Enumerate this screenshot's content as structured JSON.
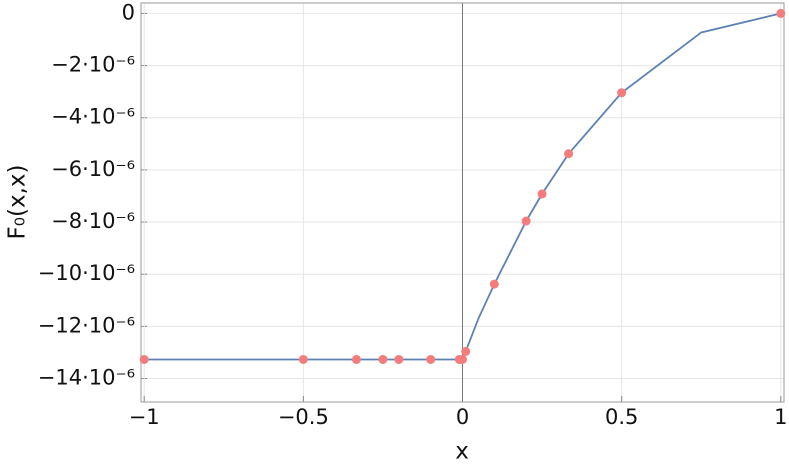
{
  "chart_data": {
    "type": "line",
    "xlabel": "x",
    "ylabel": "F₀(x,x)",
    "xlim": [
      -1.01,
      1.01
    ],
    "ylim": [
      -1.49e-05,
      4e-07
    ],
    "xticks": [
      {
        "value": -1,
        "label": "−1"
      },
      {
        "value": -0.5,
        "label": "−0.5"
      },
      0,
      0.5,
      1
    ],
    "yticks": [
      0,
      {
        "value": -2e-06,
        "label": "−2·10⁻⁶"
      },
      {
        "value": -4e-06,
        "label": "−4·10⁻⁶"
      },
      {
        "value": -6e-06,
        "label": "−6·10⁻⁶"
      },
      {
        "value": -8e-06,
        "label": "−8·10⁻⁶"
      },
      {
        "value": -1e-05,
        "label": "−10·10⁻⁶"
      },
      {
        "value": -1.2e-05,
        "label": "−12·10⁻⁶"
      },
      {
        "value": -1.4e-05,
        "label": "−14·10⁻⁶"
      }
    ],
    "grid": true,
    "series": [
      {
        "mark": "line",
        "color": "#5e81b5",
        "x": [
          -1,
          0,
          0.01,
          0.05,
          0.1,
          0.2,
          0.25,
          0.3333,
          0.5,
          0.75,
          1
        ],
        "values": [
          -1.327e-05,
          -1.327e-05,
          -1.296e-05,
          -1.17e-05,
          -1.038e-05,
          -7.96e-06,
          -6.92e-06,
          -5.38e-06,
          -3.04e-06,
          -7.3e-07,
          0
        ]
      },
      {
        "mark": "point",
        "color": "#f47c7c",
        "x": [
          -1,
          -0.5,
          -0.3333,
          -0.25,
          -0.2,
          -0.1,
          -0.01,
          0,
          0.01,
          0.1,
          0.2,
          0.25,
          0.3333,
          0.5,
          1
        ],
        "values": [
          -1.327e-05,
          -1.327e-05,
          -1.327e-05,
          -1.327e-05,
          -1.327e-05,
          -1.327e-05,
          -1.327e-05,
          -1.327e-05,
          -1.296e-05,
          -1.038e-05,
          -7.96e-06,
          -6.92e-06,
          -5.38e-06,
          -3.04e-06,
          0
        ]
      }
    ]
  }
}
